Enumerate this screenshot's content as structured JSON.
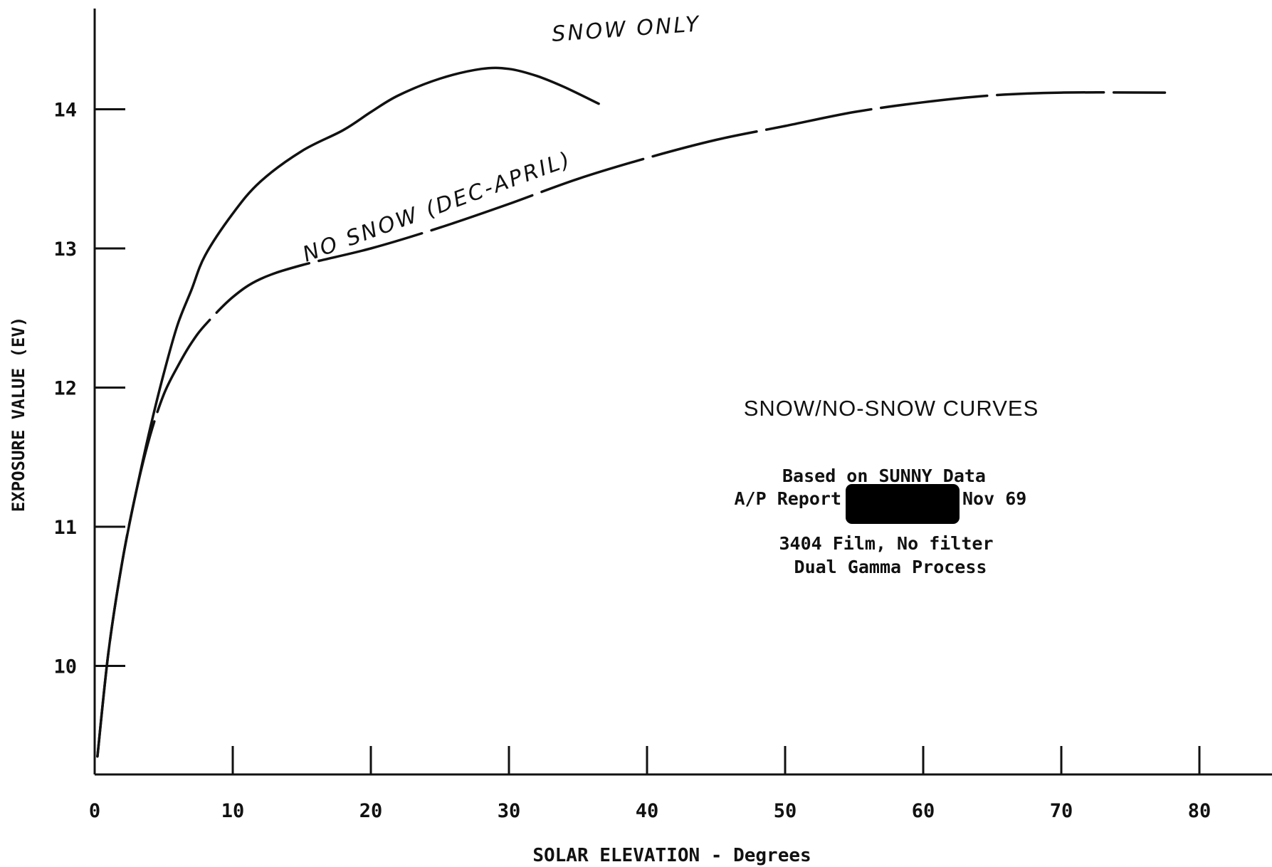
{
  "chart_data": {
    "type": "line",
    "title": "SNOW/NO-SNOW CURVES",
    "xlabel": "SOLAR ELEVATION - Degrees",
    "ylabel": "EXPOSURE VALUE (EV)",
    "xlim": [
      0,
      85
    ],
    "ylim": [
      9,
      14.6
    ],
    "x_ticks": [
      "0",
      "10",
      "20",
      "30",
      "40",
      "50",
      "60",
      "70",
      "80"
    ],
    "y_ticks": [
      "10",
      "11",
      "12",
      "13",
      "14"
    ],
    "grid": false,
    "legend": "none",
    "annotation_lines": [
      "Based on SUNNY Data",
      "A/P Report",
      "Nov 69",
      "3404 Film, No filter",
      "Dual Gamma Process"
    ],
    "series": [
      {
        "name": "SNOW ONLY",
        "style": "solid",
        "x": [
          0.2,
          1,
          2,
          3,
          4,
          5,
          6,
          7,
          8,
          10,
          12,
          15,
          18,
          20,
          22,
          25,
          28,
          30,
          32,
          34,
          36.5
        ],
        "y": [
          9.35,
          10.1,
          10.75,
          11.25,
          11.7,
          12.1,
          12.45,
          12.7,
          12.95,
          13.25,
          13.48,
          13.7,
          13.85,
          13.98,
          14.1,
          14.22,
          14.29,
          14.29,
          14.24,
          14.16,
          14.04
        ]
      },
      {
        "name": "NO SNOW (DEC-APRIL)",
        "style": "dashed",
        "x": [
          0.2,
          1,
          2,
          3,
          4,
          5,
          6,
          7,
          8,
          10,
          12,
          15,
          20,
          25,
          30,
          35,
          40,
          45,
          50,
          55,
          60,
          65,
          70,
          77.5
        ],
        "y": [
          9.35,
          10.1,
          10.75,
          11.25,
          11.65,
          11.95,
          12.15,
          12.32,
          12.45,
          12.65,
          12.78,
          12.88,
          13.0,
          13.15,
          13.32,
          13.5,
          13.65,
          13.78,
          13.88,
          13.98,
          14.05,
          14.1,
          14.12,
          14.12
        ]
      }
    ],
    "labels": {
      "snow_only": "SNOW ONLY",
      "no_snow": "NO SNOW (DEC-APRIL)"
    }
  },
  "colors": {
    "ink": "#111111",
    "redaction": "#000000"
  }
}
